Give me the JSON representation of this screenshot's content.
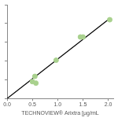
{
  "chart_data": {
    "type": "scatter",
    "x_label": "TECHNOVIEW® Arixtra [µg/mL",
    "xlim": [
      0,
      2.1
    ],
    "xticks": [
      {
        "value": 0,
        "label": "0.0"
      },
      {
        "value": 0.5,
        "label": "0.5"
      },
      {
        "value": 1,
        "label": "1.0"
      },
      {
        "value": 1.5,
        "label": "1.5"
      },
      {
        "value": 2,
        "label": "2.0"
      }
    ],
    "ylim": [
      0,
      2.5
    ],
    "yticks": [
      0,
      0.5,
      1,
      1.5,
      2,
      2.5
    ],
    "tick_labels": "x",
    "grid": false,
    "series": [
      {
        "type": "scatter",
        "marker": "circle",
        "color": "#a9d18e",
        "x": [
          0.5,
          0.55,
          0.57,
          0.97,
          1.45,
          1.5,
          2.03
        ],
        "values": [
          0.45,
          0.59,
          0.41,
          1.02,
          1.64,
          1.64,
          2.1
        ]
      },
      {
        "type": "line",
        "line_style": "solid",
        "color": "#000000",
        "x": [
          0,
          2
        ],
        "values": [
          0,
          2.1
        ]
      }
    ]
  }
}
